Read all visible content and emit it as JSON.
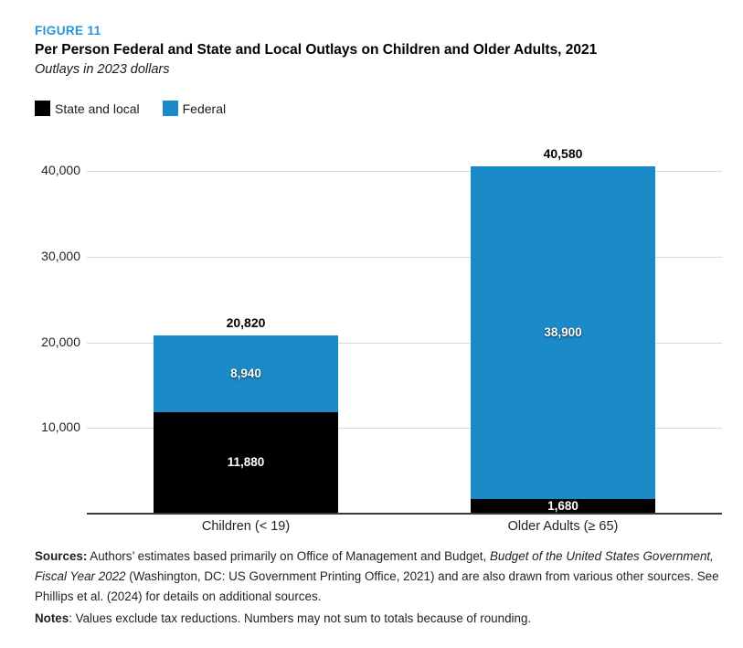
{
  "figure_label": "FIGURE 11",
  "title": "Per Person Federal and State and Local Outlays on Children and Older Adults, 2021",
  "subtitle": "Outlays in 2023 dollars",
  "colors": {
    "federal_blue": "#1b8ac9",
    "state_local_black": "#000000",
    "figure_label_blue": "#2496d8",
    "gridline_gray": "#d9d9d9",
    "axis_dark": "#3b3b3b"
  },
  "legend": [
    {
      "label": "State and local",
      "color": "#000000"
    },
    {
      "label": "Federal",
      "color": "#1b8ac9"
    }
  ],
  "chart_data": {
    "type": "bar",
    "stacked": true,
    "title": "Per Person Federal and State and Local Outlays on Children and Older Adults, 2021",
    "subtitle": "Outlays in 2023 dollars",
    "categories": [
      "Children (< 19)",
      "Older Adults (≥ 65)"
    ],
    "series": [
      {
        "name": "State and local",
        "color": "#000000",
        "values": [
          11880,
          1680
        ],
        "value_labels": [
          "11,880",
          "1,680"
        ]
      },
      {
        "name": "Federal",
        "color": "#1b8ac9",
        "values": [
          8940,
          38900
        ],
        "value_labels": [
          "8,940",
          "38,900"
        ]
      }
    ],
    "totals": [
      20820,
      40580
    ],
    "total_labels": [
      "20,820",
      "40,580"
    ],
    "xlabel": "",
    "ylabel": "",
    "y_axis": {
      "ticks": [
        10000,
        20000,
        30000,
        40000
      ],
      "tick_labels": [
        "10,000",
        "20,000",
        "30,000",
        "40,000"
      ],
      "min": 0,
      "max": 40000
    },
    "grid": true,
    "legend_position": "top-left"
  },
  "sources": {
    "segments": [
      {
        "text": "Sources:",
        "bold": true
      },
      {
        "text": " Authors’ estimates based primarily on Office of Management and Budget, "
      },
      {
        "text": "Budget of the United States Government, Fiscal Year 2022",
        "italic": true
      },
      {
        "text": " (Washington, DC: US Government Printing Office, 2021) and are also drawn from various other sources. See Phillips et al. (2024) for details on additional sources."
      }
    ]
  },
  "notes": {
    "segments": [
      {
        "text": "Notes",
        "bold": true
      },
      {
        "text": ": Values exclude tax reductions. Numbers may not sum to totals because of rounding."
      }
    ]
  }
}
